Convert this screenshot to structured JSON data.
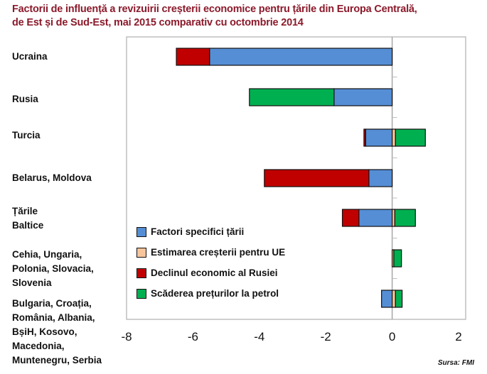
{
  "chart_data": {
    "type": "bar",
    "orientation": "horizontal-stacked",
    "title": "Factorii de influență a revizuirii creșterii economice pentru țările din Europa Centrală, de Est și de Sud-Est, mai 2015 comparativ cu octombrie 2014",
    "title_lines": [
      "Factorii de influență a revizuirii creșterii economice pentru țările din Europa Centrală,",
      "de Est și de Sud-Est, mai 2015 comparativ cu octombrie 2014"
    ],
    "xlabel": "",
    "ylabel": "",
    "xlim": [
      -8,
      2
    ],
    "xticks": [
      -8,
      -6,
      -4,
      -2,
      0,
      2
    ],
    "xtick_labels": [
      "-8",
      "-6",
      "-4",
      "-2",
      "0",
      "2"
    ],
    "grid": false,
    "legend_position": "lower-left inside",
    "categories": [
      "Ucraina",
      "Rusia",
      "Turcia",
      "Belarus, Moldova",
      "Țările\nBaltice",
      "Cehia, Ungaria,\nPolonia, Slovacia,\nSlovenia",
      "Bulgaria, Croația,\nRomânia, Albania,\nBșiH, Kosovo,\nMacedonia,\nMuntenegru, Serbia"
    ],
    "series": [
      {
        "name": "Factori specifici țării",
        "color": "#558ED5",
        "values": [
          -5.5,
          -1.75,
          -0.8,
          -0.7,
          -1.0,
          0.0,
          -0.32
        ]
      },
      {
        "name": "Estimarea creșterii pentru UE",
        "color": "#F8C49A",
        "values": [
          0.0,
          0.0,
          0.1,
          0.0,
          0.08,
          0.05,
          0.1
        ]
      },
      {
        "name": "Declinul economic al Rusiei",
        "color": "#C00000",
        "values": [
          -1.0,
          0.0,
          -0.05,
          -3.15,
          -0.5,
          0.0,
          0.0
        ]
      },
      {
        "name": "Scăderea prețurilor la petrol",
        "color": "#00B050",
        "values": [
          0.0,
          -2.55,
          0.9,
          0.0,
          0.62,
          0.23,
          0.2
        ]
      }
    ],
    "source": "Sursa: FMI"
  }
}
